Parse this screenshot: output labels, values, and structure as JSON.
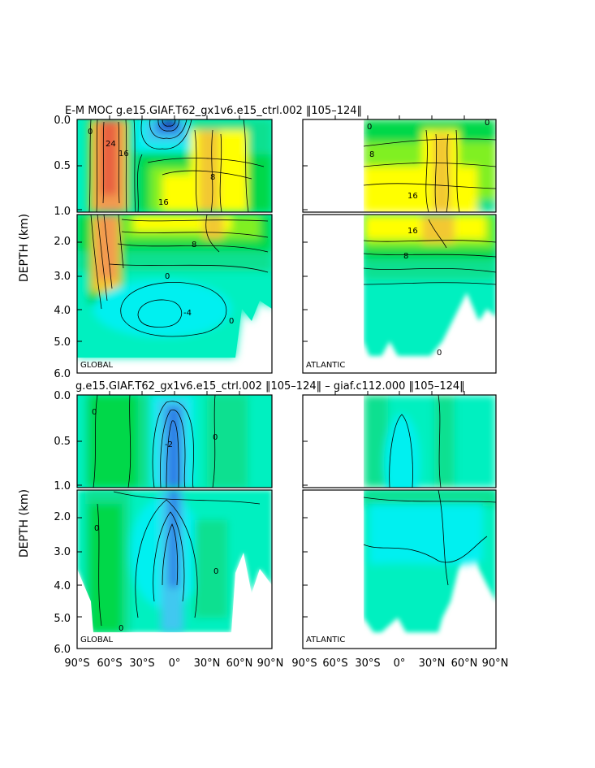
{
  "titles": {
    "top": "E-M MOC   g.e15.GIAF.T62_gx1v6.e15_ctrl.002  ‖105–124‖",
    "bottom": "g.e15.GIAF.T62_gx1v6.e15_ctrl.002  ‖105–124‖ – giaf.c112.000  ‖105–124‖"
  },
  "axes": {
    "ylabel": "DEPTH  (km)",
    "upper_ticks": [
      "0.0",
      "0.5",
      "1.0"
    ],
    "lower_ticks": [
      "2.0",
      "3.0",
      "4.0",
      "5.0",
      "6.0"
    ],
    "x_ticks": [
      "90°S",
      "60°S",
      "30°S",
      "0°",
      "30°N",
      "60°N",
      "90°N"
    ],
    "x_ticks_right_first": "90°S"
  },
  "regions": {
    "global": "GLOBAL",
    "atlantic": "ATLANTIC"
  },
  "contour_labels": {
    "top_global_upper": [
      "24",
      "16",
      "8",
      "16",
      "0"
    ],
    "top_global_lower": [
      "8",
      "0",
      "-4",
      "0"
    ],
    "top_atlantic_upper": [
      "8",
      "16",
      "0",
      "0"
    ],
    "top_atlantic_lower": [
      "16",
      "8",
      "0"
    ],
    "bottom_global_upper": [
      "0",
      "-2",
      "0"
    ],
    "bottom_global_lower": [
      "0",
      "0",
      "0"
    ]
  },
  "colors": {
    "deep_blue": "#1a1aa8",
    "blue": "#2f7fe6",
    "light_blue": "#3fc8f0",
    "cyan": "#00f0f0",
    "aqua": "#00f0c0",
    "sea_green": "#10e090",
    "green": "#00d84a",
    "lime": "#80f020",
    "yellow": "#ffff00",
    "gold": "#f2c830",
    "orange": "#f29a50",
    "red_orange": "#e86040"
  },
  "chart_data": [
    {
      "type": "heatmap",
      "title": "E-M MOC   g.e15.GIAF.T62_gx1v6.e15_ctrl.002  ‖105–124‖",
      "panels": [
        "GLOBAL",
        "ATLANTIC"
      ],
      "ylabel": "DEPTH  (km)",
      "ylim": [
        6.0,
        0.0
      ],
      "xlim": [
        -90,
        90
      ],
      "contour_levels": [
        -4,
        0,
        4,
        8,
        12,
        16,
        20,
        24
      ],
      "global": {
        "max_transport": 24,
        "nh_cell_max": 16,
        "abyssal_min": -4
      },
      "atlantic": {
        "lat_range": [
          -34,
          90
        ],
        "nadw_max": 16
      }
    },
    {
      "type": "heatmap",
      "title": "g.e15.GIAF.T62_gx1v6.e15_ctrl.002  ‖105–124‖ – giaf.c112.000  ‖105–124‖",
      "panels": [
        "GLOBAL",
        "ATLANTIC"
      ],
      "ylabel": "DEPTH  (km)",
      "ylim": [
        6.0,
        0.0
      ],
      "xlim": [
        -90,
        90
      ],
      "contour_levels": [
        -2,
        0,
        2
      ],
      "global": {
        "equatorial_min": -2
      },
      "atlantic": {
        "lat_range": [
          -34,
          90
        ]
      }
    }
  ]
}
